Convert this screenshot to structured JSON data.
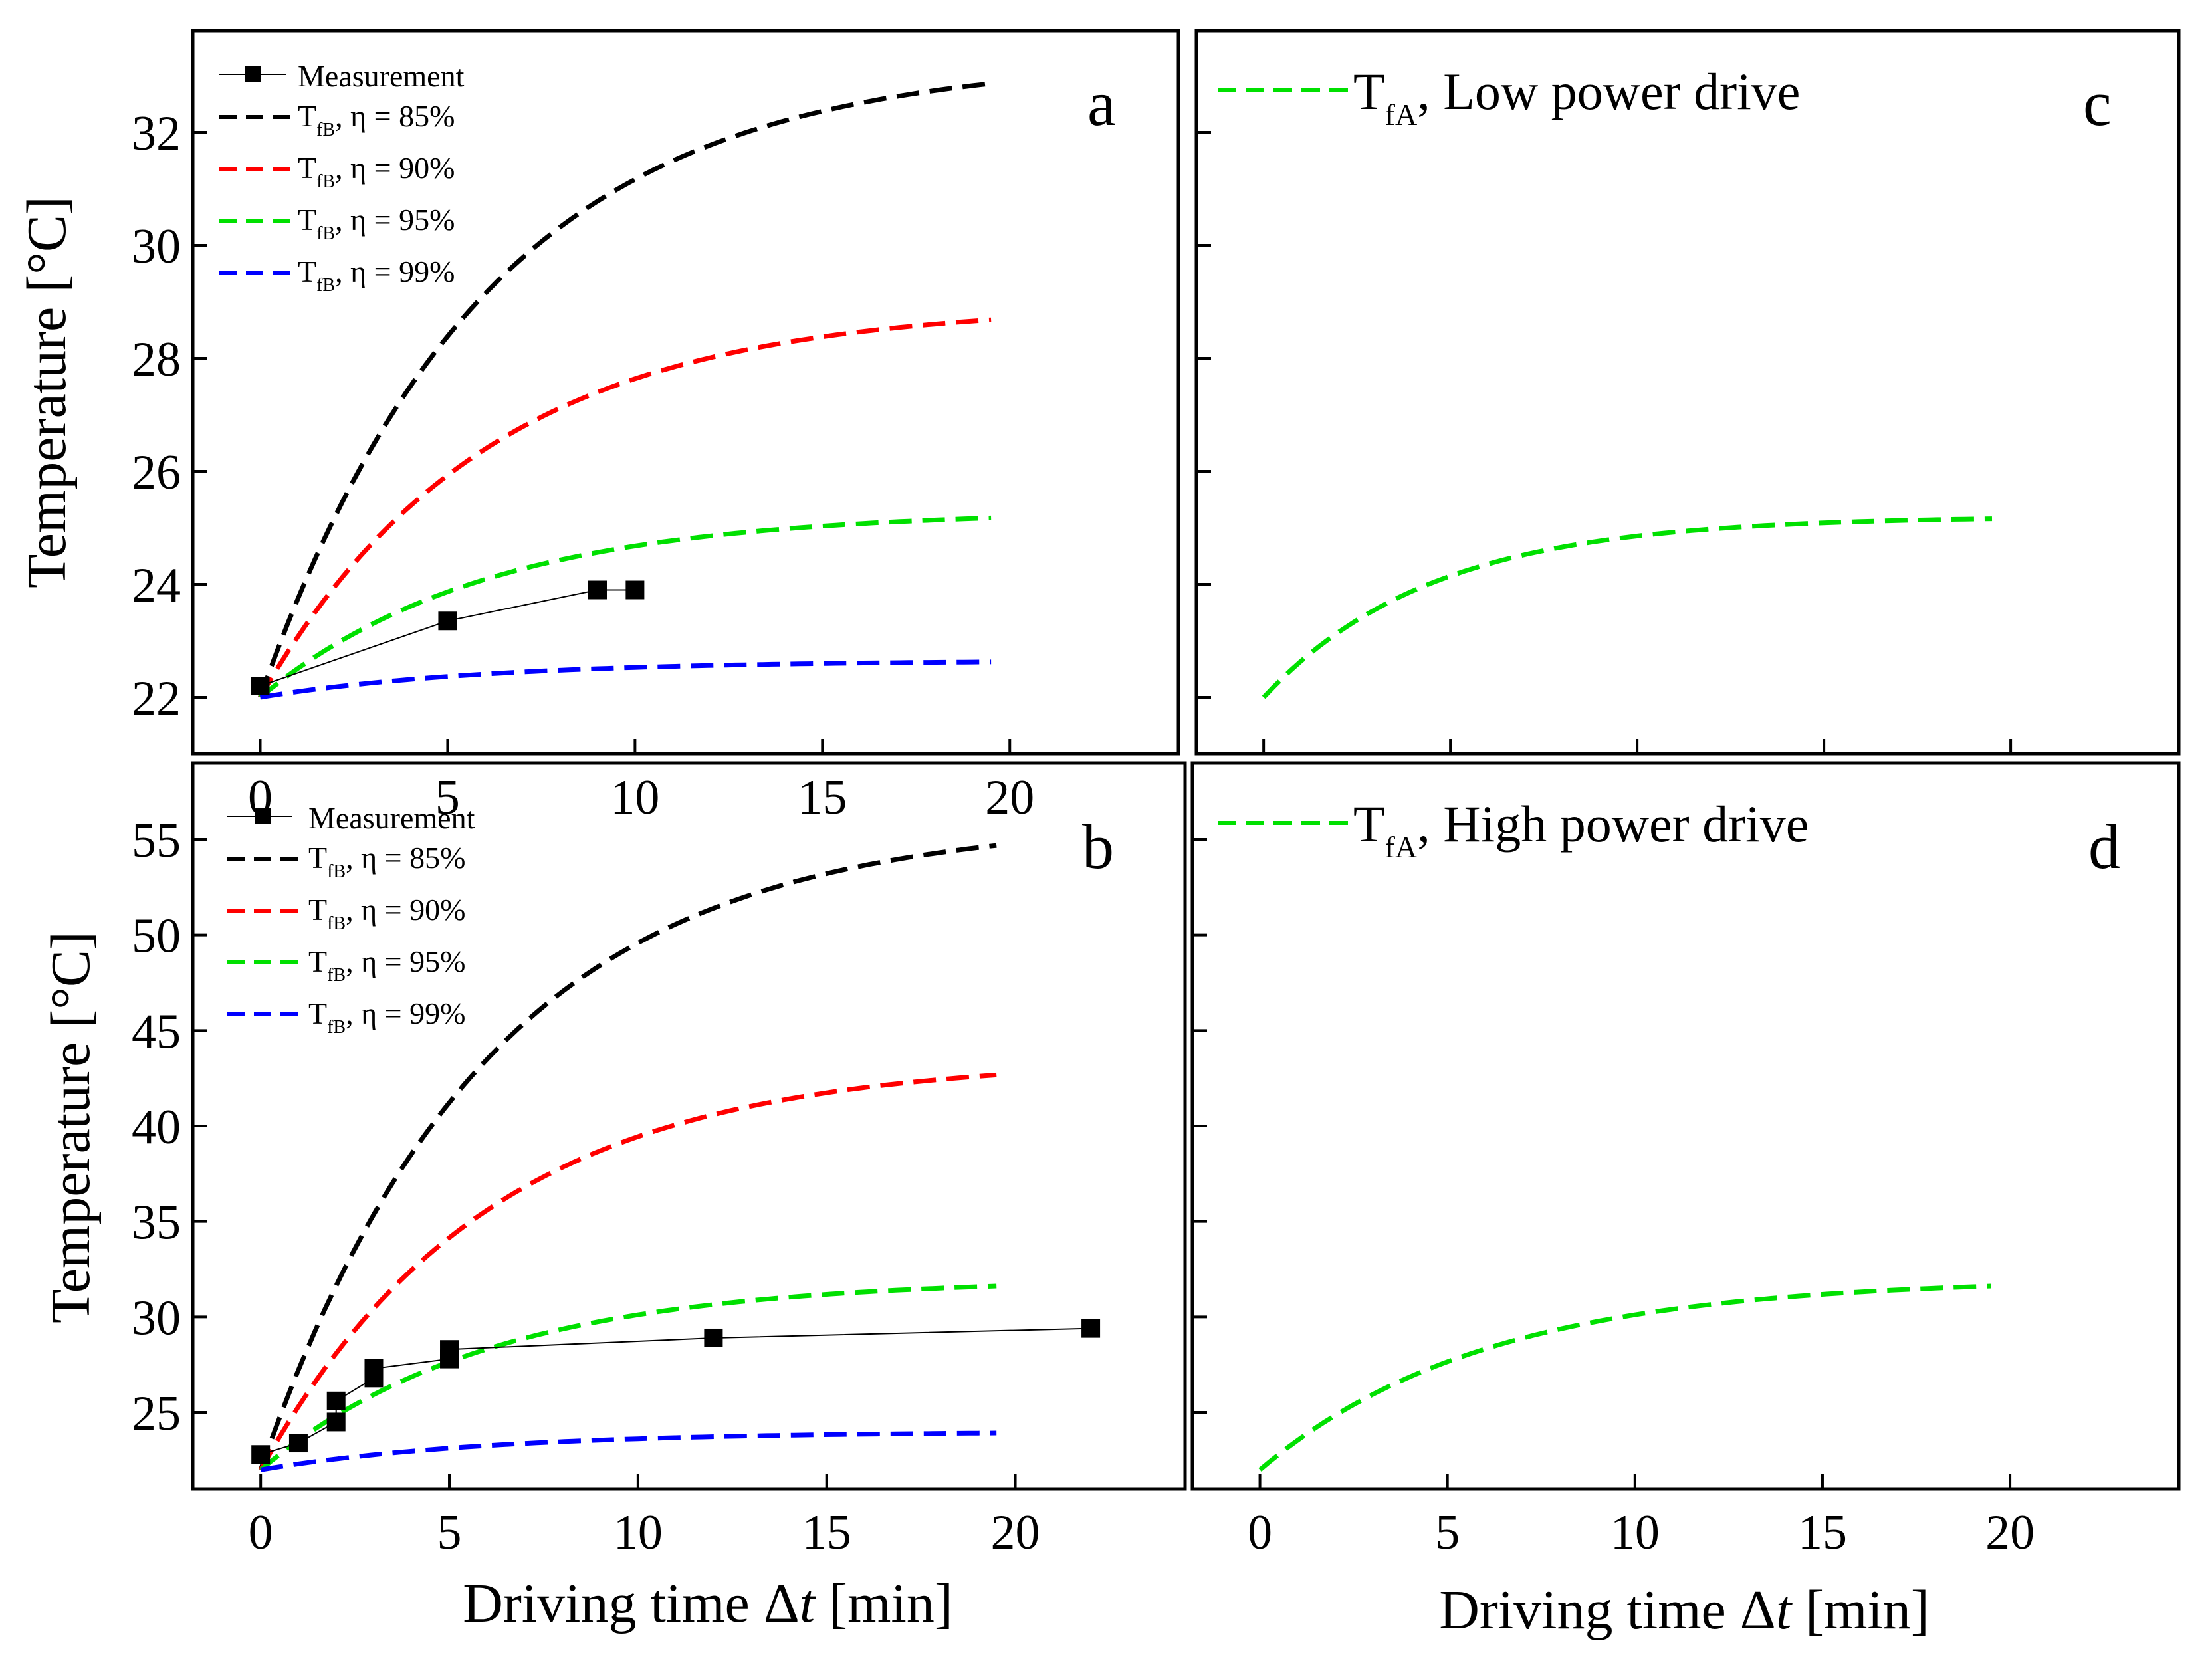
{
  "chart_data": [
    {
      "panel": "a",
      "type": "line",
      "x_range": [
        -1.8,
        24.5
      ],
      "ylim": [
        21.0,
        33.8
      ],
      "y_ticks": [
        22,
        24,
        26,
        28,
        30,
        32
      ],
      "x_ticks": [
        0,
        5,
        10,
        15,
        20
      ],
      "ylabel": "Temperature [°C]",
      "legend": [
        {
          "kind": "measurement",
          "label": "Measurement"
        },
        {
          "kind": "line",
          "color": "#000000",
          "prefix": "T",
          "sub": "fB",
          "suffix": ", η = 85%"
        },
        {
          "kind": "line",
          "color": "#ff0000",
          "prefix": "T",
          "sub": "fB",
          "suffix": ", η = 90%"
        },
        {
          "kind": "line",
          "color": "#00e000",
          "prefix": "T",
          "sub": "fB",
          "suffix": ", η = 95%"
        },
        {
          "kind": "line",
          "color": "#0000ff",
          "prefix": "T",
          "sub": "fB",
          "suffix": ", η = 99%"
        }
      ],
      "series": [
        {
          "name": "T_fB, η = 85%",
          "color": "#000000",
          "start": 22.0,
          "end": 33.3,
          "tau": 6.0,
          "x_end": 19.5
        },
        {
          "name": "T_fB, η = 90%",
          "color": "#ff0000",
          "start": 22.0,
          "end": 28.95,
          "tau": 6.0,
          "x_end": 19.5
        },
        {
          "name": "T_fB, η = 95%",
          "color": "#00e000",
          "start": 22.0,
          "end": 25.3,
          "tau": 6.0,
          "x_end": 19.5
        },
        {
          "name": "T_fB, η = 99%",
          "color": "#0000ff",
          "start": 22.0,
          "end": 22.65,
          "tau": 6.0,
          "x_end": 19.5
        }
      ],
      "measurement": {
        "x": [
          0,
          5,
          9,
          10
        ],
        "y": [
          22.2,
          23.35,
          23.9,
          23.9
        ]
      }
    },
    {
      "panel": "b",
      "type": "line",
      "x_range": [
        -1.8,
        24.5
      ],
      "ylim": [
        21.0,
        59.0
      ],
      "y_ticks": [
        25,
        30,
        35,
        40,
        45,
        50,
        55
      ],
      "x_ticks": [
        0,
        5,
        10,
        15,
        20
      ],
      "xlabel_pre": "Driving time Δ",
      "xlabel_var": "t",
      "xlabel_post": " [min]",
      "ylabel": "Temperature [°C]",
      "legend": [
        {
          "kind": "measurement",
          "label": "Measurement"
        },
        {
          "kind": "line",
          "color": "#000000",
          "prefix": "T",
          "sub": "fB",
          "suffix": ", η = 85%"
        },
        {
          "kind": "line",
          "color": "#ff0000",
          "prefix": "T",
          "sub": "fB",
          "suffix": ", η = 90%"
        },
        {
          "kind": "line",
          "color": "#00e000",
          "prefix": "T",
          "sub": "fB",
          "suffix": ", η = 95%"
        },
        {
          "kind": "line",
          "color": "#0000ff",
          "prefix": "T",
          "sub": "fB",
          "suffix": ", η = 99%"
        }
      ],
      "series": [
        {
          "name": "T_fB, η = 85%",
          "color": "#000000",
          "start": 22.0,
          "end": 56.0,
          "tau": 6.0,
          "x_end": 19.5
        },
        {
          "name": "T_fB, η = 90%",
          "color": "#ff0000",
          "start": 22.0,
          "end": 43.5,
          "tau": 6.0,
          "x_end": 19.5
        },
        {
          "name": "T_fB, η = 95%",
          "color": "#00e000",
          "start": 22.0,
          "end": 32.0,
          "tau": 6.0,
          "x_end": 19.5
        },
        {
          "name": "T_fB, η = 99%",
          "color": "#0000ff",
          "start": 22.0,
          "end": 24.0,
          "tau": 6.0,
          "x_end": 19.5
        }
      ],
      "measurement": {
        "x": [
          0,
          1,
          2,
          2,
          3,
          3,
          5,
          5,
          12,
          22
        ],
        "y": [
          22.8,
          23.4,
          24.5,
          25.6,
          26.8,
          27.3,
          27.8,
          28.3,
          28.9,
          29.4
        ]
      }
    },
    {
      "panel": "c",
      "type": "line",
      "x_range": [
        -1.8,
        24.5
      ],
      "ylim": [
        21.0,
        33.8
      ],
      "legend": [
        {
          "kind": "line",
          "color": "#00e000",
          "prefix": "T",
          "sub": "fA",
          "suffix": ", Low power drive"
        }
      ],
      "series": [
        {
          "name": "T_fA, Low power drive",
          "color": "#00e000",
          "start": 22.0,
          "end": 25.2,
          "tau": 4.5,
          "x_end": 19.5
        }
      ]
    },
    {
      "panel": "d",
      "type": "line",
      "x_range": [
        -1.8,
        24.5
      ],
      "ylim": [
        21.0,
        59.0
      ],
      "x_ticks": [
        0,
        5,
        10,
        15,
        20
      ],
      "xlabel_pre": "Driving time Δ",
      "xlabel_var": "t",
      "xlabel_post": " [min]",
      "legend": [
        {
          "kind": "line",
          "color": "#00e000",
          "prefix": "T",
          "sub": "fA",
          "suffix": ", High power drive"
        }
      ],
      "series": [
        {
          "name": "T_fA, High power drive",
          "color": "#00e000",
          "start": 22.0,
          "end": 32.0,
          "tau": 6.0,
          "x_end": 19.5
        }
      ]
    }
  ]
}
